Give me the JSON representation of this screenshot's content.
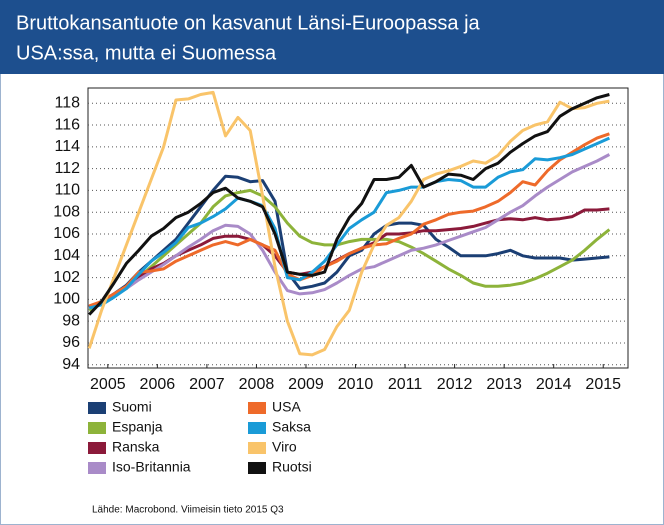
{
  "chart_data": {
    "type": "line",
    "title": [
      "Bruttokansantuote on kasvanut Länsi-Euroopassa ja",
      "USA:ssa, mutta ei Suomessa"
    ],
    "source": "Lähde: Macrobond. Viimeisin tieto 2015 Q3",
    "x": [
      2005.125,
      2005.375,
      2005.625,
      2005.875,
      2006.125,
      2006.375,
      2006.625,
      2006.875,
      2007.125,
      2007.375,
      2007.625,
      2007.875,
      2008.125,
      2008.375,
      2008.625,
      2008.875,
      2009.125,
      2009.375,
      2009.625,
      2009.875,
      2010.125,
      2010.375,
      2010.625,
      2010.875,
      2011.125,
      2011.375,
      2011.625,
      2011.875,
      2012.125,
      2012.375,
      2012.625,
      2012.875,
      2013.125,
      2013.375,
      2013.625,
      2013.875,
      2014.125,
      2014.375,
      2014.625,
      2014.875,
      2015.125,
      2015.375,
      2015.625
    ],
    "xlim": [
      2005.1,
      2016.0
    ],
    "xticks": [
      {
        "value": 2005.5,
        "label": "2005"
      },
      {
        "value": 2006.5,
        "label": "2006"
      },
      {
        "value": 2007.5,
        "label": "2007"
      },
      {
        "value": 2008.5,
        "label": "2008"
      },
      {
        "value": 2009.5,
        "label": "2009"
      },
      {
        "value": 2010.5,
        "label": "2010"
      },
      {
        "value": 2011.5,
        "label": "2011"
      },
      {
        "value": 2012.5,
        "label": "2012"
      },
      {
        "value": 2013.5,
        "label": "2013"
      },
      {
        "value": 2014.5,
        "label": "2014"
      },
      {
        "value": 2015.5,
        "label": "2015"
      }
    ],
    "ylim": [
      93.7,
      119.4
    ],
    "yticks": [
      94,
      96,
      98,
      100,
      102,
      104,
      106,
      108,
      110,
      112,
      114,
      116,
      118
    ],
    "grid": true,
    "series": [
      {
        "name": "Suomi",
        "color": "#1b3f74",
        "values": [
          99.3,
          99.8,
          100.5,
          101.3,
          102.5,
          103.5,
          104.5,
          105.5,
          107,
          108.5,
          110,
          111.3,
          111.2,
          110.8,
          110.9,
          109,
          102.5,
          101,
          101.2,
          101.5,
          102.5,
          104,
          104.5,
          106,
          106.8,
          107,
          107,
          106.8,
          105.5,
          104.8,
          104,
          104,
          104,
          104.2,
          104.5,
          104,
          103.8,
          103.8,
          103.8,
          103.6,
          103.7,
          103.8,
          103.9
        ]
      },
      {
        "name": "Espanja",
        "color": "#8db33a",
        "values": [
          99,
          99.6,
          100.3,
          101,
          102,
          103,
          104,
          105,
          106,
          107,
          108.5,
          109.5,
          109.8,
          110,
          109.5,
          108.5,
          107,
          105.8,
          105.2,
          105,
          105,
          105.3,
          105.5,
          105.5,
          105.5,
          105.3,
          104.8,
          104.2,
          103.5,
          102.8,
          102.2,
          101.5,
          101.2,
          101.2,
          101.3,
          101.5,
          101.9,
          102.4,
          103,
          103.6,
          104.5,
          105.5,
          106.4
        ]
      },
      {
        "name": "Ranska",
        "color": "#8b1a3a",
        "values": [
          99.3,
          99.8,
          100.5,
          101,
          102,
          102.8,
          103.3,
          104,
          104.5,
          105,
          105.6,
          105.8,
          105.8,
          105.5,
          105,
          104,
          102.5,
          102.3,
          102.5,
          103,
          103.6,
          104.2,
          104.7,
          105.2,
          106,
          106,
          106.1,
          106.3,
          106.3,
          106.4,
          106.5,
          106.7,
          107,
          107.3,
          107.4,
          107.3,
          107.5,
          107.3,
          107.4,
          107.6,
          108.2,
          108.2,
          108.3
        ]
      },
      {
        "name": "Iso-Britannia",
        "color": "#a98bc8",
        "values": [
          99.2,
          99.7,
          100.3,
          101,
          101.8,
          102.5,
          103.2,
          104,
          104.8,
          105.5,
          106.3,
          106.8,
          106.7,
          106,
          104.5,
          102.5,
          100.8,
          100.5,
          100.6,
          100.9,
          101.5,
          102.2,
          102.8,
          103,
          103.5,
          104,
          104.5,
          104.7,
          105,
          105.4,
          105.8,
          106.2,
          106.6,
          107.3,
          108,
          108.6,
          109.5,
          110.3,
          111,
          111.7,
          112.2,
          112.7,
          113.3
        ]
      },
      {
        "name": "USA",
        "color": "#ee6a2a",
        "values": [
          99.4,
          99.8,
          100.5,
          101.2,
          102.5,
          102.6,
          102.8,
          103.5,
          104,
          104.5,
          105,
          105.3,
          105,
          105.5,
          105,
          104.5,
          102.3,
          101.8,
          102.2,
          103,
          103.5,
          104.2,
          104.7,
          105,
          105.1,
          105.6,
          106,
          106.9,
          107.3,
          107.8,
          108,
          108.1,
          108.5,
          109,
          109.8,
          110.8,
          110.5,
          111.8,
          112.8,
          113.5,
          114.2,
          114.8,
          115.2
        ]
      },
      {
        "name": "Saksa",
        "color": "#1a9bd7",
        "values": [
          99.2,
          99.5,
          100.2,
          101,
          102.3,
          103.5,
          104.3,
          105.2,
          106.6,
          107,
          107.6,
          108.3,
          109.3,
          109,
          108.6,
          106.5,
          102,
          101.8,
          102.5,
          103.5,
          105,
          106.5,
          107.3,
          108,
          109.8,
          110,
          110.3,
          110.3,
          110.8,
          111,
          110.9,
          110.3,
          110.3,
          111.2,
          111.7,
          111.9,
          112.9,
          112.8,
          113,
          113.3,
          113.8,
          114.3,
          114.8
        ]
      },
      {
        "name": "Viro",
        "color": "#f9c46a",
        "values": [
          95.5,
          99,
          102,
          105,
          108,
          111,
          114,
          118.3,
          118.4,
          118.8,
          119,
          115,
          116.7,
          115.5,
          109.5,
          103,
          98,
          95,
          94.9,
          95.4,
          97.5,
          99,
          102.5,
          105,
          106.8,
          107.5,
          109,
          111,
          111.5,
          111.8,
          112.2,
          112.7,
          112.5,
          113.2,
          114.5,
          115.5,
          116,
          116.3,
          118.1,
          117.5,
          117.6,
          118,
          118.2
        ]
      },
      {
        "name": "Ruotsi",
        "color": "#111111",
        "values": [
          98.6,
          99.8,
          101.5,
          103.3,
          104.5,
          105.8,
          106.5,
          107.5,
          108,
          108.8,
          109.8,
          110.2,
          109.3,
          109,
          108.5,
          106,
          102.5,
          102.3,
          102.2,
          102.5,
          105.5,
          107.5,
          108.8,
          111,
          111,
          111.2,
          112.3,
          110.3,
          110.8,
          111.5,
          111.4,
          111,
          112,
          112.5,
          113.5,
          114.3,
          115,
          115.4,
          116.8,
          117.5,
          118,
          118.5,
          118.8
        ]
      }
    ]
  }
}
